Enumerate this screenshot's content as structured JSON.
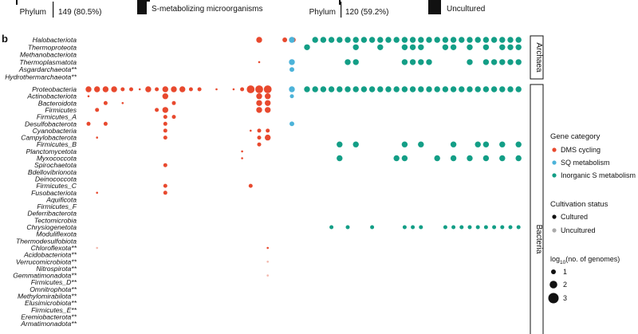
{
  "top_panel": {
    "left_phylum_label": "Phylum",
    "left_phylum_value": "149 (80.5%)",
    "left_legend_label": "S-metabolizing microorganisms",
    "right_phylum_label": "Phylum",
    "right_phylum_value": "120 (59.2%)",
    "right_legend_label": "Uncultured"
  },
  "panel_b": {
    "panel_label": "b",
    "group_labels": {
      "archaea": "Archaea",
      "bacteria": "Bacteria"
    },
    "legend": {
      "gene_title": "Gene category",
      "gene_items": [
        {
          "label": "DMS cycling",
          "color": "#e8492e"
        },
        {
          "label": "SQ metabolism",
          "color": "#4cb3d9"
        },
        {
          "label": "Inorganic S metabolism",
          "color": "#139e86"
        }
      ],
      "cult_title": "Cultivation status",
      "cult_items": [
        {
          "label": "Cultured",
          "color": "#111111"
        },
        {
          "label": "Uncultured",
          "color": "#aaaaaa"
        }
      ],
      "size_title_pre": "log",
      "size_title_sub": "10",
      "size_title_post": "(no. of genomes)",
      "size_items": [
        "1",
        "2",
        "3"
      ]
    }
  },
  "chart_data": {
    "type": "scatter",
    "subtype": "bubble-matrix",
    "size_metric": "log10(no. of genomes)",
    "categories_archaea": [
      "Halobacteriota",
      "Thermoproteota",
      "Methanobacteriota",
      "Thermoplasmatota",
      "Asgardarchaeota**",
      "Hydrothermarchaeota**"
    ],
    "categories_bacteria": [
      "Proteobacteria",
      "Actinobacteriota",
      "Bacteroidota",
      "Firmicutes",
      "Firmicutes_A",
      "Desulfobacterota",
      "Cyanobacteria",
      "Campylobacterota",
      "Firmicutes_B",
      "Planctomycetota",
      "Myxococcota",
      "Spirochaetota",
      "Bdellovibrionota",
      "Deinococcota",
      "Firmicutes_C",
      "Fusobacteriota",
      "Aquificota",
      "Firmicutes_F",
      "Deferribacterota",
      "Tectomicrobia",
      "Chrysiogenetota",
      "Moduliflexota",
      "Thermodesulfobiota",
      "Chloroflexota**",
      "Acidobacteriota**",
      "Verrucomicrobiota**",
      "Nitrospirota**",
      "Gemmatimonadota**",
      "Firmicutes_D**",
      "Omnitrophota**",
      "Methylomirabilota**",
      "Elusimicrobiota**",
      "Firmicutes_E**",
      "Eremiobacterota**",
      "Armatimonadota**"
    ],
    "gene_columns": {
      "dms_cycling": 22,
      "sq_metabolism": 1,
      "inorganic_s_metabolism": 27
    },
    "gene_category_colors": {
      "DMS cycling": "#e8492e",
      "SQ metabolism": "#4cb3d9",
      "Inorganic S metabolism": "#139e86"
    },
    "gene_category_light_colors": {
      "DMS cycling": "#f3b8ad",
      "SQ metabolism": "#b6dff0",
      "Inorganic S metabolism": "#b0ddd3"
    },
    "cultivation_status": [
      "Cultured",
      "Uncultured"
    ],
    "dms_points": [
      [
        0,
        20,
        2
      ],
      [
        0,
        23,
        1.7
      ],
      [
        0,
        24,
        1.7
      ],
      [
        3,
        20,
        1
      ],
      [
        3,
        24,
        1
      ],
      [
        6,
        0,
        2
      ],
      [
        6,
        1,
        2
      ],
      [
        6,
        2,
        2
      ],
      [
        6,
        3,
        2
      ],
      [
        6,
        4,
        1.5
      ],
      [
        6,
        5,
        1.5
      ],
      [
        6,
        6,
        1
      ],
      [
        6,
        7,
        2
      ],
      [
        6,
        8,
        1.5
      ],
      [
        6,
        9,
        2
      ],
      [
        6,
        10,
        2
      ],
      [
        6,
        11,
        2
      ],
      [
        6,
        12,
        1.5
      ],
      [
        6,
        13,
        1.5
      ],
      [
        6,
        15,
        1
      ],
      [
        6,
        17,
        1
      ],
      [
        6,
        18,
        1.5
      ],
      [
        6,
        19,
        2.5
      ],
      [
        6,
        20,
        2.5
      ],
      [
        6,
        21,
        2.5
      ],
      [
        7,
        0,
        1
      ],
      [
        7,
        9,
        2
      ],
      [
        7,
        20,
        2
      ],
      [
        7,
        21,
        2
      ],
      [
        8,
        2,
        1.5
      ],
      [
        8,
        4,
        1
      ],
      [
        8,
        10,
        1.5
      ],
      [
        8,
        20,
        2
      ],
      [
        8,
        21,
        2
      ],
      [
        9,
        1,
        1.5
      ],
      [
        9,
        8,
        1.5
      ],
      [
        9,
        9,
        2
      ],
      [
        9,
        20,
        2
      ],
      [
        9,
        21,
        2
      ],
      [
        10,
        9,
        1.5
      ],
      [
        10,
        10,
        1.5
      ],
      [
        11,
        0,
        1.5
      ],
      [
        11,
        2,
        1.5
      ],
      [
        11,
        9,
        1.5
      ],
      [
        12,
        9,
        1.5
      ],
      [
        12,
        19,
        1
      ],
      [
        12,
        20,
        1.5
      ],
      [
        12,
        21,
        1.5
      ],
      [
        13,
        1,
        1
      ],
      [
        13,
        9,
        1.5
      ],
      [
        13,
        20,
        1.5
      ],
      [
        13,
        21,
        2
      ],
      [
        14,
        20,
        1.5
      ],
      [
        15,
        18,
        1
      ],
      [
        16,
        18,
        1
      ],
      [
        17,
        9,
        1.5
      ],
      [
        20,
        9,
        1.5
      ],
      [
        20,
        19,
        1.5
      ],
      [
        21,
        1,
        1
      ],
      [
        21,
        9,
        1.5
      ],
      [
        29,
        1,
        1
      ],
      [
        29,
        21,
        1
      ],
      [
        31,
        21,
        1
      ],
      [
        33,
        21,
        1
      ]
    ],
    "sq_points": [
      [
        0,
        0,
        2
      ],
      [
        3,
        0,
        2
      ],
      [
        4,
        0,
        1.7
      ],
      [
        6,
        0,
        2
      ],
      [
        7,
        0,
        1.5
      ],
      [
        11,
        0,
        1.7
      ]
    ],
    "inorganic_points": [
      [
        0,
        1,
        2
      ],
      [
        0,
        2,
        2
      ],
      [
        0,
        3,
        2
      ],
      [
        0,
        4,
        2
      ],
      [
        0,
        5,
        2
      ],
      [
        0,
        6,
        2
      ],
      [
        0,
        7,
        2
      ],
      [
        0,
        8,
        2
      ],
      [
        0,
        9,
        2
      ],
      [
        0,
        10,
        2
      ],
      [
        0,
        11,
        2
      ],
      [
        0,
        12,
        2
      ],
      [
        0,
        13,
        2
      ],
      [
        0,
        14,
        2
      ],
      [
        0,
        15,
        2
      ],
      [
        0,
        16,
        2
      ],
      [
        0,
        17,
        2
      ],
      [
        0,
        18,
        2
      ],
      [
        0,
        19,
        2
      ],
      [
        0,
        20,
        2
      ],
      [
        0,
        21,
        2
      ],
      [
        0,
        22,
        2
      ],
      [
        0,
        23,
        2
      ],
      [
        0,
        24,
        2
      ],
      [
        0,
        25,
        2
      ],
      [
        0,
        26,
        2
      ],
      [
        1,
        0,
        2
      ],
      [
        1,
        6,
        2
      ],
      [
        1,
        9,
        2
      ],
      [
        1,
        12,
        2
      ],
      [
        1,
        13,
        2
      ],
      [
        1,
        14,
        2
      ],
      [
        1,
        17,
        2
      ],
      [
        1,
        18,
        2
      ],
      [
        1,
        20,
        2
      ],
      [
        1,
        22,
        2
      ],
      [
        1,
        24,
        2
      ],
      [
        1,
        25,
        2
      ],
      [
        1,
        26,
        2
      ],
      [
        3,
        5,
        2
      ],
      [
        3,
        6,
        2
      ],
      [
        3,
        12,
        2
      ],
      [
        3,
        13,
        2
      ],
      [
        3,
        14,
        2
      ],
      [
        3,
        15,
        2
      ],
      [
        3,
        20,
        2
      ],
      [
        3,
        22,
        2
      ],
      [
        3,
        23,
        2
      ],
      [
        3,
        24,
        2
      ],
      [
        3,
        25,
        2
      ],
      [
        3,
        26,
        2
      ],
      [
        6,
        0,
        2
      ],
      [
        6,
        1,
        2
      ],
      [
        6,
        2,
        2
      ],
      [
        6,
        3,
        2
      ],
      [
        6,
        4,
        2
      ],
      [
        6,
        5,
        2
      ],
      [
        6,
        6,
        2
      ],
      [
        6,
        7,
        2
      ],
      [
        6,
        8,
        2
      ],
      [
        6,
        9,
        2
      ],
      [
        6,
        10,
        2
      ],
      [
        6,
        11,
        2
      ],
      [
        6,
        12,
        2
      ],
      [
        6,
        13,
        2
      ],
      [
        6,
        14,
        2
      ],
      [
        6,
        15,
        2
      ],
      [
        6,
        16,
        2
      ],
      [
        6,
        17,
        2
      ],
      [
        6,
        18,
        2
      ],
      [
        6,
        19,
        2
      ],
      [
        6,
        20,
        2
      ],
      [
        6,
        21,
        2
      ],
      [
        6,
        22,
        2
      ],
      [
        6,
        23,
        2
      ],
      [
        6,
        24,
        2
      ],
      [
        6,
        25,
        2
      ],
      [
        6,
        26,
        2
      ],
      [
        14,
        4,
        2
      ],
      [
        14,
        6,
        2
      ],
      [
        14,
        12,
        2
      ],
      [
        14,
        14,
        2
      ],
      [
        14,
        18,
        2
      ],
      [
        14,
        21,
        2
      ],
      [
        14,
        22,
        2
      ],
      [
        14,
        24,
        2
      ],
      [
        14,
        26,
        2
      ],
      [
        16,
        4,
        2
      ],
      [
        16,
        11,
        2
      ],
      [
        16,
        12,
        2
      ],
      [
        16,
        16,
        2
      ],
      [
        16,
        18,
        2
      ],
      [
        16,
        20,
        2
      ],
      [
        16,
        22,
        2
      ],
      [
        16,
        24,
        2
      ],
      [
        16,
        26,
        2
      ],
      [
        26,
        3,
        1.5
      ],
      [
        26,
        5,
        1.5
      ],
      [
        26,
        8,
        1.5
      ],
      [
        26,
        12,
        1.5
      ],
      [
        26,
        13,
        1.5
      ],
      [
        26,
        14,
        1.5
      ],
      [
        26,
        17,
        1.5
      ],
      [
        26,
        18,
        1.5
      ],
      [
        26,
        19,
        1.5
      ],
      [
        26,
        20,
        1.5
      ],
      [
        26,
        21,
        1.5
      ],
      [
        26,
        22,
        1.5
      ],
      [
        26,
        23,
        1.5
      ],
      [
        26,
        24,
        1.5
      ],
      [
        26,
        25,
        1.5
      ],
      [
        26,
        26,
        1.5
      ]
    ]
  }
}
